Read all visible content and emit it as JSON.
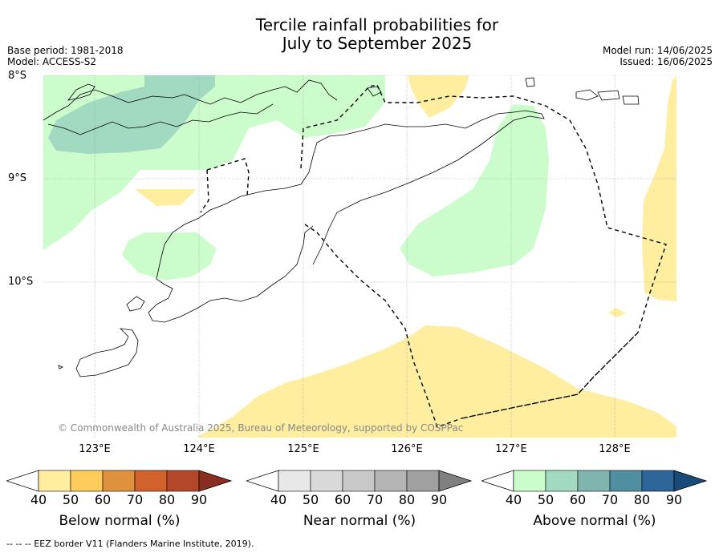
{
  "title_line1": "Tercile rainfall probabilities for",
  "title_line2": "July to September 2025",
  "meta_left": {
    "base_period": "Base period: 1981-2018",
    "model": "Model: ACCESS-S2"
  },
  "meta_right": {
    "model_run": "Model run: 14/06/2025",
    "issued": "Issued: 16/06/2025"
  },
  "lat_labels": [
    "8°S",
    "9°S",
    "10°S"
  ],
  "lon_labels": [
    "123°E",
    "124°E",
    "125°E",
    "126°E",
    "127°E",
    "128°E"
  ],
  "copyright": "© Commonwealth of Australia 2025, Bureau of Meteorology, supported by COSPPac",
  "colorbars": [
    {
      "title": "Below normal (%)",
      "ticks": [
        "40",
        "50",
        "60",
        "70",
        "80",
        "90"
      ],
      "colors": [
        "#ffffff",
        "#ffeda0",
        "#fecc5c",
        "#e0913d",
        "#d0622d",
        "#b2472a",
        "#8c2d22"
      ]
    },
    {
      "title": "Near normal (%)",
      "ticks": [
        "40",
        "50",
        "60",
        "70",
        "80",
        "90"
      ],
      "colors": [
        "#ffffff",
        "#e8e8e8",
        "#d9d9d9",
        "#c8c8c8",
        "#b4b4b4",
        "#a0a0a0",
        "#808080"
      ]
    },
    {
      "title": "Above normal (%)",
      "ticks": [
        "40",
        "50",
        "60",
        "70",
        "80",
        "90"
      ],
      "colors": [
        "#ffffff",
        "#ccfccc",
        "#a1d9c1",
        "#80b5ae",
        "#4f8fa0",
        "#2e6598",
        "#184a7a"
      ]
    }
  ],
  "footnote": "-- -- -- EEZ border V11 (Flanders Marine Institute, 2019)."
}
